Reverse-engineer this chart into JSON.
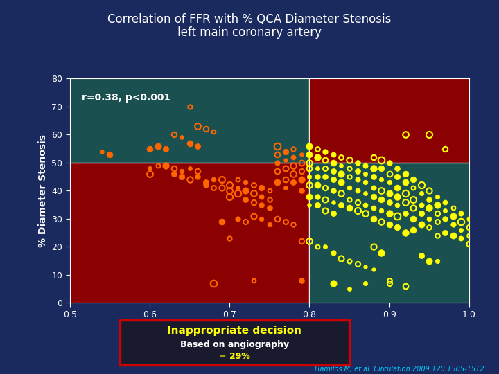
{
  "title_line1": "Correlation of FFR with % QCA Diameter Stenosis",
  "title_line2": "left main coronary artery",
  "xlabel": "FFR",
  "ylabel": "% Diameter Stenosis",
  "correlation_text": "r=0.38, p<0.001",
  "xlim": [
    0.5,
    1.0
  ],
  "ylim": [
    0,
    80
  ],
  "xticks": [
    0.5,
    0.6,
    0.7,
    0.8,
    0.9,
    1.0
  ],
  "yticks": [
    0,
    10,
    20,
    30,
    40,
    50,
    60,
    70,
    80
  ],
  "ffr_threshold": 0.8,
  "stenosis_threshold": 50,
  "bg_outer": "#1a2a5e",
  "bg_plot": "#1a5050",
  "red_region_color": "#8B0000",
  "inappropriate_label": "Inappropriate decision",
  "based_on": "Based on angiography",
  "percentage": "= 29%",
  "citation": "Hamilos M, et al. Circulation 2009;120:1505-1512",
  "orange_points": [
    [
      0.54,
      54
    ],
    [
      0.55,
      53
    ],
    [
      0.6,
      48
    ],
    [
      0.6,
      46
    ],
    [
      0.61,
      49
    ],
    [
      0.62,
      49
    ],
    [
      0.63,
      48
    ],
    [
      0.63,
      46
    ],
    [
      0.64,
      47
    ],
    [
      0.64,
      45
    ],
    [
      0.65,
      48
    ],
    [
      0.65,
      44
    ],
    [
      0.66,
      47
    ],
    [
      0.66,
      45
    ],
    [
      0.67,
      43
    ],
    [
      0.67,
      42
    ],
    [
      0.68,
      44
    ],
    [
      0.68,
      41
    ],
    [
      0.69,
      44
    ],
    [
      0.69,
      41
    ],
    [
      0.69,
      29
    ],
    [
      0.7,
      42
    ],
    [
      0.7,
      40
    ],
    [
      0.7,
      38
    ],
    [
      0.7,
      23
    ],
    [
      0.71,
      44
    ],
    [
      0.71,
      41
    ],
    [
      0.71,
      39
    ],
    [
      0.71,
      30
    ],
    [
      0.72,
      43
    ],
    [
      0.72,
      40
    ],
    [
      0.72,
      37
    ],
    [
      0.72,
      29
    ],
    [
      0.73,
      42
    ],
    [
      0.73,
      39
    ],
    [
      0.73,
      36
    ],
    [
      0.73,
      31
    ],
    [
      0.73,
      8
    ],
    [
      0.74,
      41
    ],
    [
      0.74,
      38
    ],
    [
      0.74,
      35
    ],
    [
      0.74,
      30
    ],
    [
      0.75,
      40
    ],
    [
      0.75,
      37
    ],
    [
      0.75,
      34
    ],
    [
      0.75,
      28
    ],
    [
      0.76,
      56
    ],
    [
      0.76,
      53
    ],
    [
      0.76,
      50
    ],
    [
      0.76,
      47
    ],
    [
      0.76,
      43
    ],
    [
      0.76,
      30
    ],
    [
      0.77,
      54
    ],
    [
      0.77,
      51
    ],
    [
      0.77,
      48
    ],
    [
      0.77,
      44
    ],
    [
      0.77,
      41
    ],
    [
      0.77,
      29
    ],
    [
      0.78,
      55
    ],
    [
      0.78,
      52
    ],
    [
      0.78,
      49
    ],
    [
      0.78,
      46
    ],
    [
      0.78,
      43
    ],
    [
      0.78,
      28
    ],
    [
      0.79,
      53
    ],
    [
      0.79,
      50
    ],
    [
      0.79,
      47
    ],
    [
      0.79,
      44
    ],
    [
      0.79,
      40
    ],
    [
      0.68,
      7
    ],
    [
      0.6,
      55
    ],
    [
      0.61,
      56
    ],
    [
      0.62,
      55
    ],
    [
      0.63,
      60
    ],
    [
      0.64,
      59
    ],
    [
      0.65,
      70
    ],
    [
      0.65,
      57
    ],
    [
      0.66,
      63
    ],
    [
      0.66,
      56
    ],
    [
      0.67,
      62
    ],
    [
      0.68,
      61
    ],
    [
      0.79,
      22
    ],
    [
      0.79,
      8
    ]
  ],
  "yellow_points": [
    [
      0.8,
      56
    ],
    [
      0.8,
      53
    ],
    [
      0.8,
      50
    ],
    [
      0.8,
      48
    ],
    [
      0.8,
      45
    ],
    [
      0.8,
      42
    ],
    [
      0.8,
      38
    ],
    [
      0.8,
      35
    ],
    [
      0.8,
      22
    ],
    [
      0.81,
      55
    ],
    [
      0.81,
      52
    ],
    [
      0.81,
      48
    ],
    [
      0.81,
      45
    ],
    [
      0.81,
      42
    ],
    [
      0.81,
      38
    ],
    [
      0.81,
      35
    ],
    [
      0.81,
      20
    ],
    [
      0.82,
      54
    ],
    [
      0.82,
      51
    ],
    [
      0.82,
      48
    ],
    [
      0.82,
      45
    ],
    [
      0.82,
      41
    ],
    [
      0.82,
      37
    ],
    [
      0.82,
      33
    ],
    [
      0.82,
      20
    ],
    [
      0.83,
      53
    ],
    [
      0.83,
      50
    ],
    [
      0.83,
      47
    ],
    [
      0.83,
      44
    ],
    [
      0.83,
      40
    ],
    [
      0.83,
      36
    ],
    [
      0.83,
      32
    ],
    [
      0.83,
      18
    ],
    [
      0.84,
      52
    ],
    [
      0.84,
      49
    ],
    [
      0.84,
      46
    ],
    [
      0.84,
      43
    ],
    [
      0.84,
      39
    ],
    [
      0.84,
      35
    ],
    [
      0.84,
      16
    ],
    [
      0.85,
      51
    ],
    [
      0.85,
      48
    ],
    [
      0.85,
      45
    ],
    [
      0.85,
      41
    ],
    [
      0.85,
      37
    ],
    [
      0.85,
      34
    ],
    [
      0.85,
      15
    ],
    [
      0.86,
      50
    ],
    [
      0.86,
      47
    ],
    [
      0.86,
      44
    ],
    [
      0.86,
      40
    ],
    [
      0.86,
      36
    ],
    [
      0.86,
      33
    ],
    [
      0.86,
      14
    ],
    [
      0.87,
      49
    ],
    [
      0.87,
      46
    ],
    [
      0.87,
      43
    ],
    [
      0.87,
      39
    ],
    [
      0.87,
      35
    ],
    [
      0.87,
      32
    ],
    [
      0.87,
      13
    ],
    [
      0.88,
      52
    ],
    [
      0.88,
      48
    ],
    [
      0.88,
      45
    ],
    [
      0.88,
      41
    ],
    [
      0.88,
      38
    ],
    [
      0.88,
      34
    ],
    [
      0.88,
      30
    ],
    [
      0.88,
      20
    ],
    [
      0.88,
      12
    ],
    [
      0.89,
      51
    ],
    [
      0.89,
      48
    ],
    [
      0.89,
      44
    ],
    [
      0.89,
      40
    ],
    [
      0.89,
      37
    ],
    [
      0.89,
      33
    ],
    [
      0.89,
      29
    ],
    [
      0.89,
      18
    ],
    [
      0.9,
      50
    ],
    [
      0.9,
      46
    ],
    [
      0.9,
      43
    ],
    [
      0.9,
      39
    ],
    [
      0.9,
      36
    ],
    [
      0.9,
      32
    ],
    [
      0.9,
      28
    ],
    [
      0.9,
      8
    ],
    [
      0.91,
      48
    ],
    [
      0.91,
      45
    ],
    [
      0.91,
      41
    ],
    [
      0.91,
      38
    ],
    [
      0.91,
      35
    ],
    [
      0.91,
      31
    ],
    [
      0.91,
      27
    ],
    [
      0.92,
      60
    ],
    [
      0.92,
      46
    ],
    [
      0.92,
      43
    ],
    [
      0.92,
      39
    ],
    [
      0.92,
      36
    ],
    [
      0.92,
      32
    ],
    [
      0.92,
      25
    ],
    [
      0.92,
      6
    ],
    [
      0.93,
      44
    ],
    [
      0.93,
      41
    ],
    [
      0.93,
      37
    ],
    [
      0.93,
      34
    ],
    [
      0.93,
      30
    ],
    [
      0.93,
      26
    ],
    [
      0.94,
      42
    ],
    [
      0.94,
      39
    ],
    [
      0.94,
      35
    ],
    [
      0.94,
      32
    ],
    [
      0.94,
      28
    ],
    [
      0.94,
      17
    ],
    [
      0.95,
      60
    ],
    [
      0.95,
      40
    ],
    [
      0.95,
      37
    ],
    [
      0.95,
      34
    ],
    [
      0.95,
      30
    ],
    [
      0.95,
      27
    ],
    [
      0.95,
      15
    ],
    [
      0.96,
      38
    ],
    [
      0.96,
      35
    ],
    [
      0.96,
      32
    ],
    [
      0.96,
      29
    ],
    [
      0.96,
      24
    ],
    [
      0.96,
      15
    ],
    [
      0.97,
      55
    ],
    [
      0.97,
      36
    ],
    [
      0.97,
      33
    ],
    [
      0.97,
      30
    ],
    [
      0.97,
      25
    ],
    [
      0.98,
      34
    ],
    [
      0.98,
      31
    ],
    [
      0.98,
      28
    ],
    [
      0.98,
      24
    ],
    [
      0.99,
      32
    ],
    [
      0.99,
      29
    ],
    [
      0.99,
      26
    ],
    [
      0.99,
      23
    ],
    [
      1.0,
      30
    ],
    [
      1.0,
      27
    ],
    [
      1.0,
      24
    ],
    [
      1.0,
      21
    ],
    [
      0.83,
      7
    ],
    [
      0.85,
      5
    ],
    [
      0.87,
      7
    ],
    [
      0.9,
      7
    ]
  ]
}
